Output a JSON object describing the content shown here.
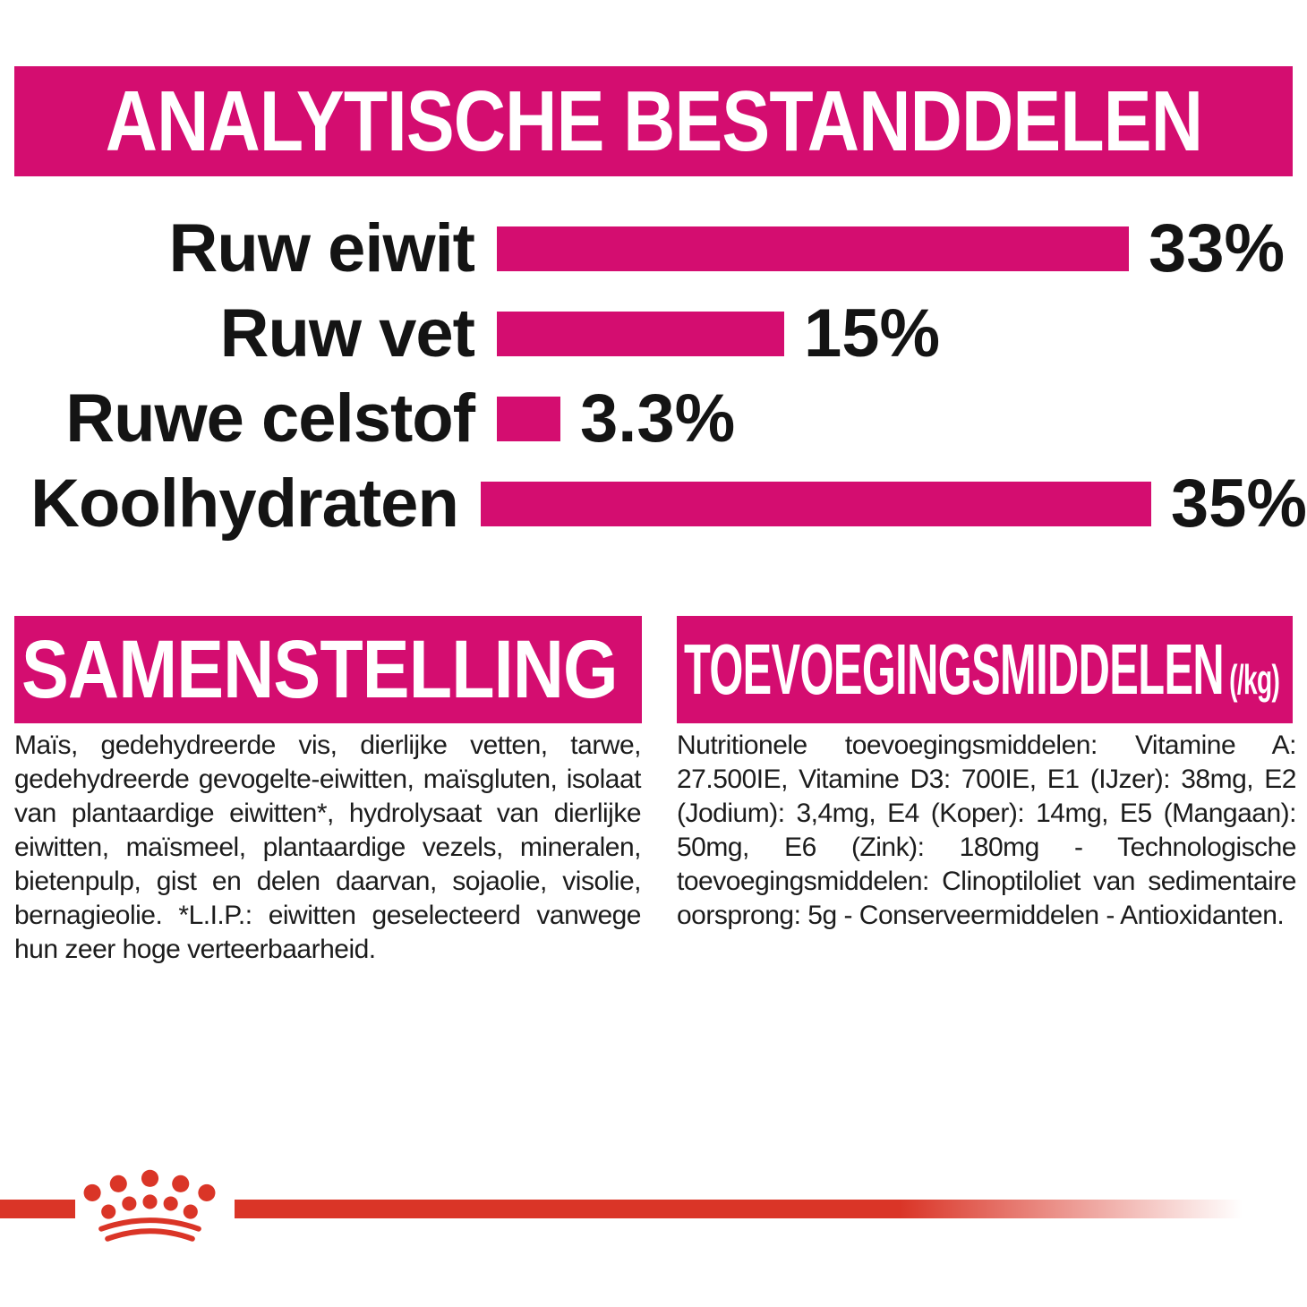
{
  "colors": {
    "pink": "#D40D70",
    "red": "#DA3527",
    "text": "#1c1c1c"
  },
  "analytical": {
    "title": "ANALYTISCHE BESTANDDELEN",
    "rows": [
      {
        "label": "Ruw eiwit",
        "value_label": "33%",
        "percent": 33
      },
      {
        "label": "Ruw vet",
        "value_label": "15%",
        "percent": 15
      },
      {
        "label": "Ruwe celstof",
        "value_label": "3.3%",
        "percent": 3.3
      },
      {
        "label": "Koolhydraten",
        "value_label": "35%",
        "percent": 35
      }
    ]
  },
  "composition": {
    "title": "SAMENSTELLING",
    "body": "Maïs, gedehydreerde vis, dierlijke vetten, tarwe, gedehydreerde gevogelte-eiwitten, maïsgluten, isolaat van plantaardige eiwitten*, hydrolysaat van dierlijke eiwitten, maïsmeel, plantaardige vezels, mineralen, bietenpulp, gist en delen daarvan, sojaolie, visolie, bernagieolie. *L.I.P.: eiwitten geselecteerd vanwege hun zeer hoge verteerbaarheid."
  },
  "additives": {
    "title": "TOEVOEGINGSMIDDELEN",
    "title_suffix": "(/kg)",
    "body": "Nutritionele toevoegingsmiddelen: Vitamine A: 27.500IE, Vitamine D3: 700IE, E1 (IJzer): 38mg, E2 (Jodium): 3,4mg, E4 (Koper): 14mg, E5 (Mangaan): 50mg, E6 (Zink): 180mg - Technologische toevoegingsmiddelen: Clinoptiloliet van sedimentaire oorsprong: 5g - Conserveermiddelen - Antioxidanten."
  },
  "footer": {
    "logo": "royal-canin-crown"
  },
  "chart_data": {
    "type": "bar",
    "orientation": "horizontal",
    "title": "ANALYTISCHE BESTANDDELEN",
    "categories": [
      "Ruw eiwit",
      "Ruw vet",
      "Ruwe celstof",
      "Koolhydraten"
    ],
    "values": [
      33,
      15,
      3.3,
      35
    ],
    "value_labels": [
      "33%",
      "15%",
      "3.3%",
      "35%"
    ],
    "xlabel": "",
    "ylabel": "",
    "xlim": [
      0,
      35
    ],
    "grid": false,
    "legend": false,
    "bar_color": "#D40D70"
  }
}
